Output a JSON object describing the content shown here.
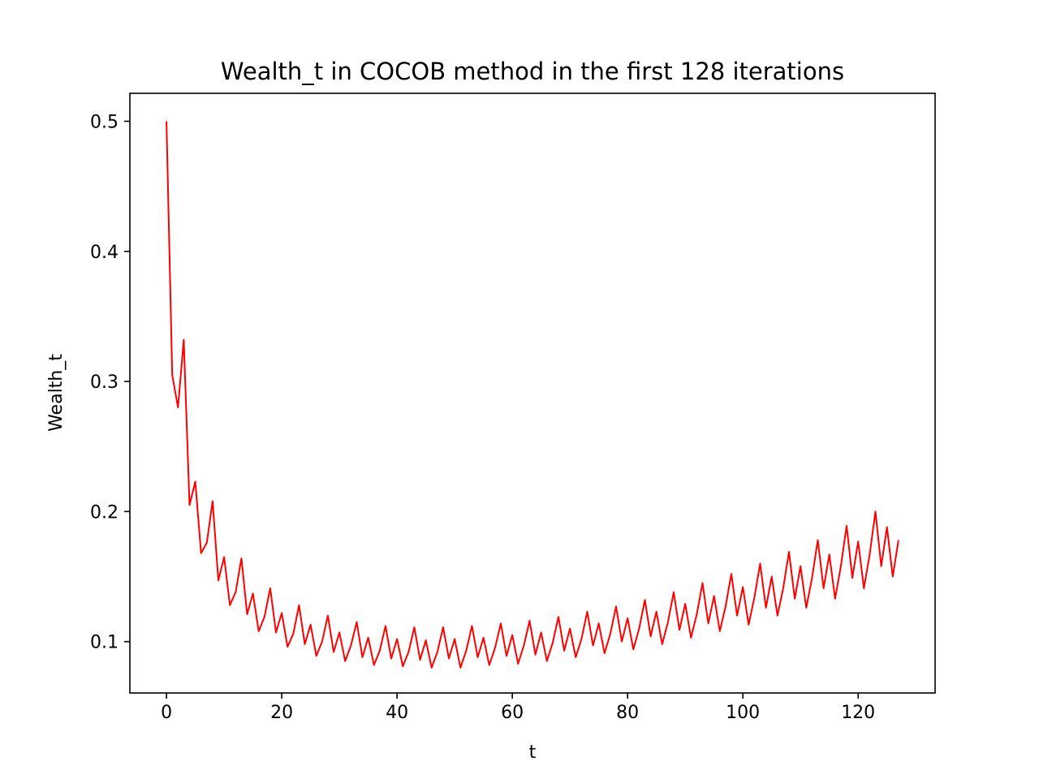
{
  "chart_data": {
    "type": "line",
    "title": "Wealth_t in COCOB method in the first 128 iterations",
    "xlabel": "t",
    "ylabel": "Wealth_t",
    "xlim": [
      -6.35,
      133.35
    ],
    "ylim": [
      0.0605,
      0.5215
    ],
    "xticks": [
      0,
      20,
      40,
      60,
      80,
      100,
      120
    ],
    "xtick_labels": [
      "0",
      "20",
      "40",
      "60",
      "80",
      "100",
      "120"
    ],
    "yticks": [
      0.1,
      0.2,
      0.3,
      0.4,
      0.5
    ],
    "ytick_labels": [
      "0.1",
      "0.2",
      "0.3",
      "0.4",
      "0.5"
    ],
    "grid": false,
    "legend": "none",
    "series": [
      {
        "color": "#ff0000",
        "x": [
          0,
          1,
          2,
          3,
          4,
          5,
          6,
          7,
          8,
          9,
          10,
          11,
          12,
          13,
          14,
          15,
          16,
          17,
          18,
          19,
          20,
          21,
          22,
          23,
          24,
          25,
          26,
          27,
          28,
          29,
          30,
          31,
          32,
          33,
          34,
          35,
          36,
          37,
          38,
          39,
          40,
          41,
          42,
          43,
          44,
          45,
          46,
          47,
          48,
          49,
          50,
          51,
          52,
          53,
          54,
          55,
          56,
          57,
          58,
          59,
          60,
          61,
          62,
          63,
          64,
          65,
          66,
          67,
          68,
          69,
          70,
          71,
          72,
          73,
          74,
          75,
          76,
          77,
          78,
          79,
          80,
          81,
          82,
          83,
          84,
          85,
          86,
          87,
          88,
          89,
          90,
          91,
          92,
          93,
          94,
          95,
          96,
          97,
          98,
          99,
          100,
          101,
          102,
          103,
          104,
          105,
          106,
          107,
          108,
          109,
          110,
          111,
          112,
          113,
          114,
          115,
          116,
          117,
          118,
          119,
          120,
          121,
          122,
          123,
          124,
          125,
          126,
          127
        ],
        "y": [
          0.5,
          0.305,
          0.28,
          0.332,
          0.205,
          0.223,
          0.168,
          0.176,
          0.208,
          0.147,
          0.165,
          0.128,
          0.138,
          0.164,
          0.121,
          0.137,
          0.108,
          0.119,
          0.141,
          0.107,
          0.122,
          0.096,
          0.106,
          0.128,
          0.098,
          0.113,
          0.089,
          0.1,
          0.12,
          0.092,
          0.107,
          0.085,
          0.097,
          0.115,
          0.088,
          0.103,
          0.082,
          0.093,
          0.112,
          0.087,
          0.102,
          0.081,
          0.092,
          0.111,
          0.086,
          0.101,
          0.08,
          0.092,
          0.111,
          0.087,
          0.102,
          0.08,
          0.093,
          0.112,
          0.088,
          0.103,
          0.082,
          0.095,
          0.114,
          0.089,
          0.105,
          0.083,
          0.097,
          0.116,
          0.09,
          0.107,
          0.085,
          0.099,
          0.119,
          0.093,
          0.11,
          0.088,
          0.102,
          0.123,
          0.097,
          0.114,
          0.091,
          0.106,
          0.127,
          0.1,
          0.118,
          0.094,
          0.11,
          0.132,
          0.104,
          0.123,
          0.098,
          0.115,
          0.138,
          0.109,
          0.129,
          0.103,
          0.121,
          0.145,
          0.114,
          0.135,
          0.108,
          0.127,
          0.152,
          0.12,
          0.142,
          0.113,
          0.134,
          0.16,
          0.126,
          0.15,
          0.12,
          0.141,
          0.169,
          0.133,
          0.158,
          0.126,
          0.149,
          0.178,
          0.141,
          0.167,
          0.133,
          0.158,
          0.189,
          0.149,
          0.177,
          0.141,
          0.167,
          0.2,
          0.158,
          0.188,
          0.15,
          0.178
        ]
      }
    ]
  }
}
